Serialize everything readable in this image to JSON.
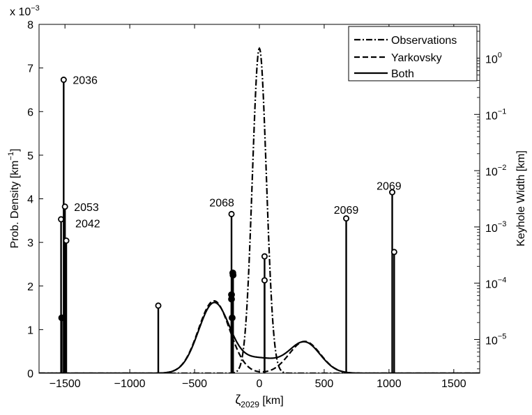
{
  "chart_data": {
    "type": "line",
    "xlabel_main": "ζ",
    "xlabel_sub": "2029",
    "xlabel_unit": " [km]",
    "ylabel_left": "Prob. Density [km",
    "ylabel_left_sup": "−1",
    "ylabel_left_end": "]",
    "ylabel_right": "Keyhole Width [km]",
    "multiplier": "x 10",
    "multiplier_exp": "−3",
    "xlim": [
      -1700,
      1700
    ],
    "ylim_left": [
      0,
      8
    ],
    "ylim_right_log10": [
      -5.6,
      0.6
    ],
    "x_ticks": [
      -1500,
      -1000,
      -500,
      0,
      500,
      1000,
      1500
    ],
    "x_tick_labels": [
      "−1500",
      "−1000",
      "−500",
      "0",
      "500",
      "1000",
      "1500"
    ],
    "y_left_ticks": [
      0,
      1,
      2,
      3,
      4,
      5,
      6,
      7,
      8
    ],
    "y_left_tick_labels": [
      "0",
      "1",
      "2",
      "3",
      "4",
      "5",
      "6",
      "7",
      "8"
    ],
    "y_right_ticks": [
      {
        "exp": -5,
        "label": "10",
        "sup": "−5"
      },
      {
        "exp": -4,
        "label": "10",
        "sup": "−4"
      },
      {
        "exp": -3,
        "label": "10",
        "sup": "−3"
      },
      {
        "exp": -2,
        "label": "10",
        "sup": "−2"
      },
      {
        "exp": -1,
        "label": "10",
        "sup": "−1"
      },
      {
        "exp": 0,
        "label": "10",
        "sup": "0"
      }
    ],
    "legend": {
      "position": "top-right",
      "entries": [
        {
          "name": "Observations",
          "style": "dashdot"
        },
        {
          "name": "Yarkovsky",
          "style": "dashed"
        },
        {
          "name": "Both",
          "style": "solid"
        }
      ]
    },
    "series": [
      {
        "name": "Observations",
        "style": "dashdot",
        "mean": 0,
        "sigma": 54,
        "peak": 7.45
      },
      {
        "name": "Yarkovsky",
        "style": "dashed",
        "components": [
          {
            "mean": -350,
            "sigma": 120,
            "amp": 1.66
          },
          {
            "mean": 350,
            "sigma": 120,
            "amp": 0.73
          }
        ]
      },
      {
        "name": "Both",
        "style": "solid",
        "components": [
          {
            "mean": -350,
            "sigma": 120,
            "amp": 1.6
          },
          {
            "mean": 350,
            "sigma": 120,
            "amp": 0.7
          },
          {
            "mean": 0,
            "sigma": 150,
            "amp": 0.33
          }
        ]
      }
    ],
    "keyholes": [
      {
        "x": -1530,
        "y": 3.53,
        "marker": "open"
      },
      {
        "x": -1525,
        "y": 1.27,
        "marker": "filled"
      },
      {
        "x": -1510,
        "y": 6.73,
        "marker": "open"
      },
      {
        "x": -1500,
        "y": 3.82,
        "marker": "open"
      },
      {
        "x": -1490,
        "y": 3.04,
        "marker": "open"
      },
      {
        "x": -780,
        "y": 1.55,
        "marker": "open"
      },
      {
        "x": -215,
        "y": 3.65,
        "marker": "open"
      },
      {
        "x": -215,
        "y": 1.8,
        "marker": "filled"
      },
      {
        "x": -215,
        "y": 1.7,
        "marker": "filled"
      },
      {
        "x": -210,
        "y": 1.27,
        "marker": "filled"
      },
      {
        "x": -205,
        "y": 2.3,
        "marker": "filled"
      },
      {
        "x": -203,
        "y": 2.25,
        "marker": "filled"
      },
      {
        "x": 40,
        "y": 2.68,
        "marker": "open"
      },
      {
        "x": 40,
        "y": 2.13,
        "marker": "open"
      },
      {
        "x": 670,
        "y": 3.55,
        "marker": "open"
      },
      {
        "x": 1025,
        "y": 4.15,
        "marker": "open"
      },
      {
        "x": 1040,
        "y": 2.78,
        "marker": "open"
      }
    ],
    "annotations": [
      {
        "text": "2036",
        "x": -1440,
        "y": 6.73
      },
      {
        "text": "2053",
        "x": -1430,
        "y": 3.82
      },
      {
        "text": "2042",
        "x": -1420,
        "y": 3.44
      },
      {
        "text": "2068",
        "x": -290,
        "y": 3.92
      },
      {
        "text": "2069",
        "x": 670,
        "y": 3.75
      },
      {
        "text": "2069",
        "x": 1000,
        "y": 4.3
      }
    ]
  }
}
